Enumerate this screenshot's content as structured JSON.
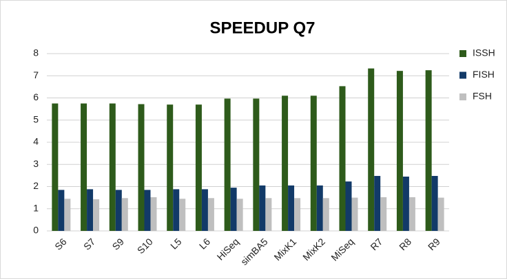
{
  "chart_data": {
    "type": "bar",
    "title": "SPEEDUP Q7",
    "categories": [
      "S6",
      "S7",
      "S9",
      "S10",
      "L5",
      "L6",
      "HiSeq",
      "simBA5",
      "MixK1",
      "MixK2",
      "MiSeq",
      "R7",
      "R8",
      "R9"
    ],
    "series": [
      {
        "name": "ISSH",
        "color": "#2e5b1b",
        "values": [
          5.75,
          5.75,
          5.75,
          5.72,
          5.7,
          5.7,
          5.97,
          5.97,
          6.1,
          6.1,
          6.53,
          7.33,
          7.22,
          7.25
        ]
      },
      {
        "name": "FISH",
        "color": "#123a68",
        "values": [
          1.85,
          1.88,
          1.85,
          1.85,
          1.88,
          1.88,
          1.95,
          2.05,
          2.05,
          2.05,
          2.23,
          2.48,
          2.45,
          2.48
        ]
      },
      {
        "name": "FSH",
        "color": "#bfbfbf",
        "values": [
          1.45,
          1.43,
          1.48,
          1.52,
          1.45,
          1.48,
          1.45,
          1.48,
          1.48,
          1.48,
          1.5,
          1.52,
          1.52,
          1.5
        ]
      }
    ],
    "ylim": [
      0,
      8
    ],
    "yticks": [
      0,
      1,
      2,
      3,
      4,
      5,
      6,
      7,
      8
    ],
    "grid": true,
    "legend": "right"
  }
}
